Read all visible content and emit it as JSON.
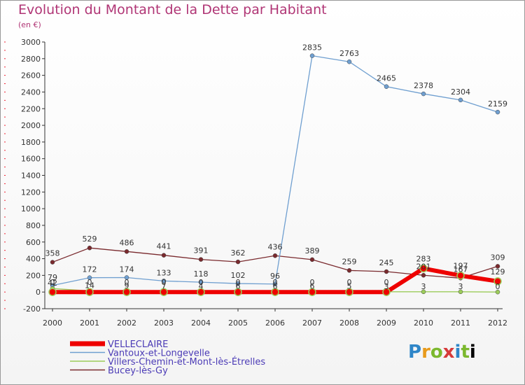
{
  "title": "Evolution du Montant de la Dette par Habitant",
  "subtitle": "(en €)",
  "logo": {
    "letters": [
      "P",
      "r",
      "o",
      "x",
      "i",
      "t",
      "i"
    ]
  },
  "chart_data": {
    "type": "line",
    "x": [
      "2000",
      "2001",
      "2002",
      "2003",
      "2004",
      "2005",
      "2006",
      "2007",
      "2008",
      "2009",
      "2010",
      "2011",
      "2012"
    ],
    "ylim": [
      -200,
      3000
    ],
    "yticks": [
      "-200",
      "0",
      "200",
      "400",
      "600",
      "800",
      "1000",
      "1200",
      "1400",
      "1600",
      "1800",
      "2000",
      "2200",
      "2400",
      "2600",
      "2800",
      "3000"
    ],
    "grid": false,
    "legend_position": "bottom-left",
    "series": [
      {
        "name": "Bucey-lès-Gy",
        "color": "#7a2a2e",
        "values": [
          358,
          529,
          486,
          441,
          391,
          362,
          436,
          389,
          259,
          245,
          201,
          167,
          309
        ],
        "labels": [
          "358",
          "529",
          "486",
          "441",
          "391",
          "362",
          "436",
          "389",
          "259",
          "245",
          "201",
          "167",
          "309"
        ]
      },
      {
        "name": "Vantoux-et-Longevelle",
        "color": "#6f9fd0",
        "values": [
          79,
          172,
          174,
          133,
          118,
          102,
          96,
          2835,
          2763,
          2465,
          2378,
          2304,
          2159
        ],
        "labels": [
          "79",
          "172",
          "174",
          "133",
          "118",
          "102",
          "96",
          "2835",
          "2763",
          "2465",
          "2378",
          "2304",
          "2159"
        ]
      },
      {
        "name": "Villers-Chemin-et-Mont-lès-Étrelles",
        "color": "#9ccc5a",
        "values": [
          42,
          14,
          9,
          7,
          4,
          6,
          6,
          6,
          5,
          3,
          3,
          3,
          0
        ],
        "labels": [
          "42",
          "14",
          "9",
          "7",
          "4",
          "6",
          "6",
          "6",
          "5",
          "3",
          "3",
          "3",
          "0"
        ]
      },
      {
        "name": "VELLECLAIRE",
        "color": "#ee0000",
        "values": [
          0,
          0,
          0,
          0,
          0,
          0,
          0,
          0,
          0,
          0,
          283,
          197,
          129
        ],
        "labels": [
          "0",
          "0",
          "0",
          "0",
          "0",
          "0",
          "0",
          "0",
          "0",
          "0",
          "283",
          "197",
          "129"
        ]
      }
    ],
    "legend": [
      "VELLECLAIRE",
      "Vantoux-et-Longevelle",
      "Villers-Chemin-et-Mont-lès-Étrelles",
      "Bucey-lès-Gy"
    ]
  }
}
